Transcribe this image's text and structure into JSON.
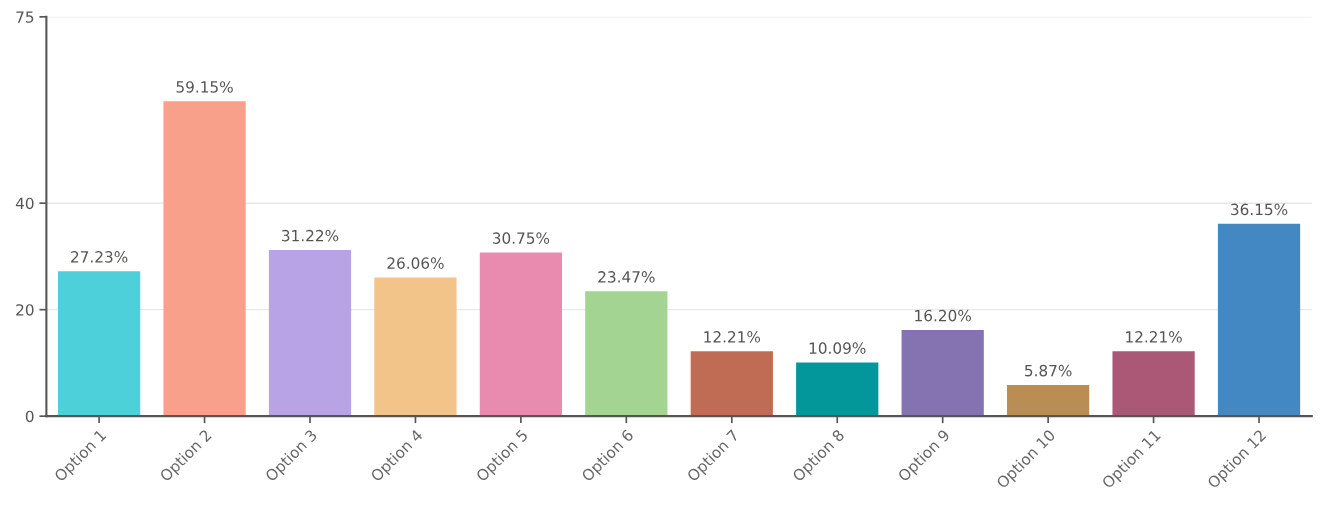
{
  "chart_data": {
    "type": "bar",
    "categories": [
      "Option 1",
      "Option 2",
      "Option 3",
      "Option 4",
      "Option 5",
      "Option 6",
      "Option 7",
      "Option 8",
      "Option 9",
      "Option 10",
      "Option 11",
      "Option 12"
    ],
    "values": [
      27.23,
      59.15,
      31.22,
      26.06,
      30.75,
      23.47,
      12.21,
      10.09,
      16.2,
      5.87,
      12.21,
      36.15
    ],
    "value_labels": [
      "27.23%",
      "59.15%",
      "31.22%",
      "26.06%",
      "30.75%",
      "23.47%",
      "12.21%",
      "10.09%",
      "16.20%",
      "5.87%",
      "12.21%",
      "36.15%"
    ],
    "colors": [
      "#4dd0d9",
      "#f9a08a",
      "#b8a3e6",
      "#f3c48a",
      "#e88bae",
      "#a3d491",
      "#c06c55",
      "#03979c",
      "#8472b1",
      "#b98d53",
      "#ab5776",
      "#4388c2"
    ],
    "ylim": [
      0,
      75
    ],
    "yticks": [
      0,
      20,
      40,
      75
    ],
    "grid": "y",
    "legend": false
  }
}
